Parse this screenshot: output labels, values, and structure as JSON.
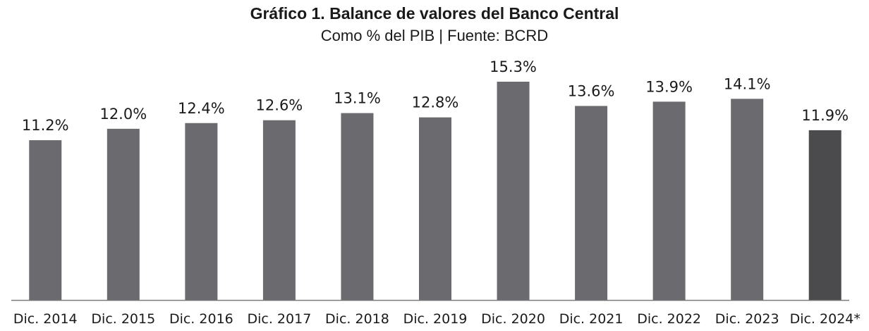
{
  "chart_data": {
    "type": "bar",
    "title": "Gráfico 1. Balance de valores del Banco Central",
    "subtitle": "Como % del PIB | Fuente: BCRD",
    "categories": [
      "Dic. 2014",
      "Dic. 2015",
      "Dic. 2016",
      "Dic. 2017",
      "Dic. 2018",
      "Dic. 2019",
      "Dic. 2020",
      "Dic. 2021",
      "Dic. 2022",
      "Dic. 2023",
      "Dic. 2024*"
    ],
    "values": [
      11.2,
      12.0,
      12.4,
      12.6,
      13.1,
      12.8,
      15.3,
      13.6,
      13.9,
      14.1,
      11.9
    ],
    "data_labels": [
      "11.2%",
      "12.0%",
      "12.4%",
      "12.6%",
      "13.1%",
      "12.8%",
      "15.3%",
      "13.6%",
      "13.9%",
      "14.1%",
      "11.9%"
    ],
    "xlabel": "",
    "ylabel": "",
    "ylim": [
      0,
      15.3
    ],
    "grid": false,
    "legend": "none",
    "colors": {
      "bar": "#6b6b6f",
      "bar_highlight": "#4b4b4e",
      "axis": "#7a7a7a"
    },
    "highlight_index": 10
  }
}
